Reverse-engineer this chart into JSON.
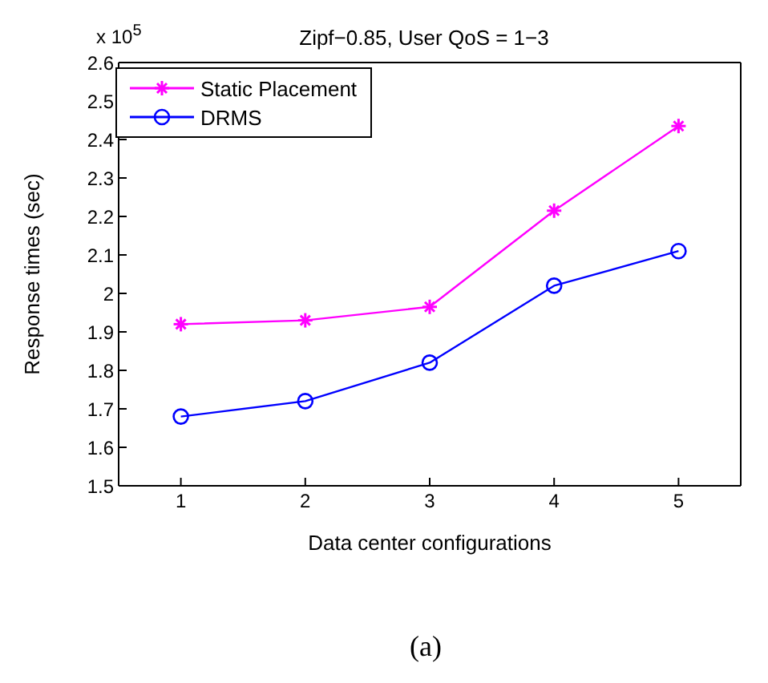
{
  "chart_data": {
    "type": "line",
    "title": "Zipf−0.85, User QoS = 1−3",
    "xlabel": "Data center configurations",
    "ylabel": "Response times (sec)",
    "x": [
      1,
      2,
      3,
      4,
      5
    ],
    "series": [
      {
        "name": "Static Placement",
        "color": "#ff00ff",
        "marker": "cross",
        "values": [
          1.92,
          1.93,
          1.965,
          2.215,
          2.435
        ]
      },
      {
        "name": "DRMS",
        "color": "#0000ff",
        "marker": "circle",
        "values": [
          1.68,
          1.72,
          1.82,
          2.02,
          2.11
        ]
      }
    ],
    "xlim": [
      0.5,
      5.5
    ],
    "xticks": [
      1,
      2,
      3,
      4,
      5
    ],
    "ylim": [
      1.5,
      2.6
    ],
    "yticks": [
      1.5,
      1.6,
      1.7,
      1.8,
      1.9,
      2,
      2.1,
      2.2,
      2.3,
      2.4,
      2.5,
      2.6
    ],
    "grid": false,
    "legend": "top left",
    "line_style": "solid",
    "annotations": [
      "x 10$^{5}$",
      "(a)"
    ]
  }
}
